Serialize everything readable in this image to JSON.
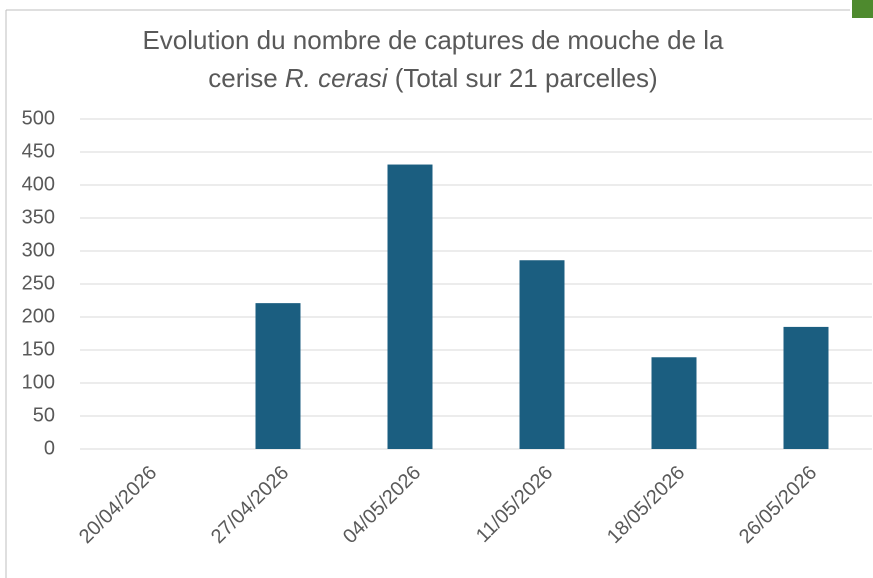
{
  "chart_data": {
    "type": "bar",
    "title": {
      "line1": "Evolution du nombre de captures de mouche de la",
      "line2": [
        "cerise",
        "R. cerasi",
        "(Total sur 21 parcelles)"
      ]
    },
    "categories": [
      "20/04/2026",
      "27/04/2026",
      "04/05/2026",
      "11/05/2026",
      "18/05/2026",
      "26/05/2026"
    ],
    "values": [
      0,
      221,
      431,
      286,
      139,
      185
    ],
    "color": "#1b5e80",
    "ylim": [
      0,
      500
    ],
    "yticks": [
      0,
      50,
      100,
      150,
      200,
      250,
      300,
      350,
      400,
      450,
      500
    ],
    "grid": true
  }
}
